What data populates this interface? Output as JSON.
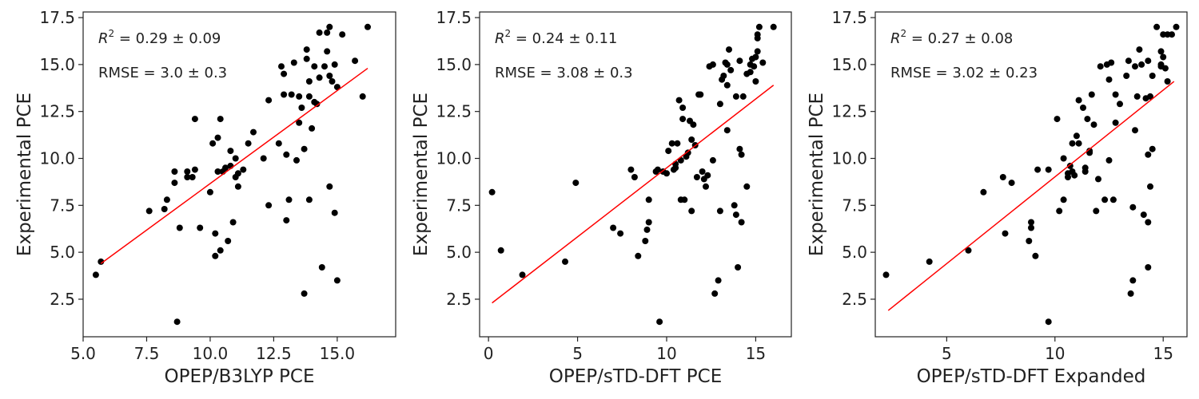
{
  "chart_data": [
    {
      "type": "scatter",
      "xlabel": "OPEP/B3LYP PCE",
      "ylabel": "Experimental PCE",
      "xlim": [
        5.0,
        17.3
      ],
      "ylim": [
        0.5,
        17.8
      ],
      "xticks": [
        5.0,
        7.5,
        10.0,
        12.5,
        15.0
      ],
      "xtick_labels": [
        "5.0",
        "7.5",
        "10.0",
        "12.5",
        "15.0"
      ],
      "yticks": [
        2.5,
        5.0,
        7.5,
        10.0,
        12.5,
        15.0,
        17.5
      ],
      "ytick_labels": [
        "2.5",
        "5.0",
        "7.5",
        "10.0",
        "12.5",
        "15.0",
        "17.5"
      ],
      "grid": false,
      "point_color": "#000000",
      "fit_color": "#ff0000",
      "annotations": {
        "r2_label": "R",
        "r2_sup": "2",
        "r2_value": " = 0.29 ± 0.09",
        "rmse": "RMSE = 3.0 ± 0.3"
      },
      "fit_line": {
        "x": [
          5.7,
          16.2
        ],
        "y": [
          4.4,
          14.8
        ]
      },
      "points": [
        [
          5.5,
          3.8
        ],
        [
          5.7,
          4.5
        ],
        [
          7.6,
          7.2
        ],
        [
          8.2,
          7.3
        ],
        [
          8.3,
          7.8
        ],
        [
          8.6,
          8.7
        ],
        [
          8.7,
          1.3
        ],
        [
          8.6,
          9.3
        ],
        [
          8.8,
          6.3
        ],
        [
          9.1,
          9.0
        ],
        [
          9.1,
          9.3
        ],
        [
          9.3,
          9.0
        ],
        [
          9.4,
          9.4
        ],
        [
          9.4,
          12.1
        ],
        [
          9.6,
          6.3
        ],
        [
          10.0,
          8.2
        ],
        [
          10.1,
          10.8
        ],
        [
          10.2,
          4.8
        ],
        [
          10.2,
          6.0
        ],
        [
          10.3,
          11.1
        ],
        [
          10.3,
          9.3
        ],
        [
          10.4,
          12.1
        ],
        [
          10.4,
          5.1
        ],
        [
          10.5,
          9.3
        ],
        [
          10.6,
          9.5
        ],
        [
          10.7,
          5.6
        ],
        [
          10.8,
          9.6
        ],
        [
          10.8,
          10.4
        ],
        [
          10.9,
          6.6
        ],
        [
          11.0,
          9.0
        ],
        [
          11.0,
          10.0
        ],
        [
          11.1,
          8.5
        ],
        [
          11.1,
          9.2
        ],
        [
          11.3,
          9.4
        ],
        [
          11.5,
          10.8
        ],
        [
          11.7,
          11.4
        ],
        [
          12.1,
          10.0
        ],
        [
          12.3,
          7.5
        ],
        [
          12.3,
          13.1
        ],
        [
          12.7,
          10.8
        ],
        [
          12.8,
          14.9
        ],
        [
          12.9,
          13.4
        ],
        [
          12.9,
          14.5
        ],
        [
          13.0,
          10.2
        ],
        [
          13.0,
          6.7
        ],
        [
          13.1,
          7.8
        ],
        [
          13.2,
          13.4
        ],
        [
          13.3,
          15.1
        ],
        [
          13.4,
          9.9
        ],
        [
          13.5,
          11.9
        ],
        [
          13.5,
          13.3
        ],
        [
          13.6,
          12.7
        ],
        [
          13.7,
          10.5
        ],
        [
          13.7,
          2.8
        ],
        [
          13.8,
          15.8
        ],
        [
          13.8,
          15.3
        ],
        [
          13.9,
          14.1
        ],
        [
          13.9,
          13.3
        ],
        [
          13.9,
          7.8
        ],
        [
          14.0,
          11.6
        ],
        [
          14.1,
          14.9
        ],
        [
          14.1,
          13.0
        ],
        [
          14.2,
          12.9
        ],
        [
          14.3,
          14.3
        ],
        [
          14.3,
          16.7
        ],
        [
          14.4,
          4.2
        ],
        [
          14.5,
          14.9
        ],
        [
          14.6,
          16.7
        ],
        [
          14.6,
          15.7
        ],
        [
          14.7,
          17.0
        ],
        [
          14.7,
          14.4
        ],
        [
          14.7,
          8.5
        ],
        [
          14.8,
          14.1
        ],
        [
          14.9,
          15.0
        ],
        [
          14.9,
          7.1
        ],
        [
          15.0,
          3.5
        ],
        [
          15.0,
          13.8
        ],
        [
          15.2,
          16.6
        ],
        [
          15.7,
          15.2
        ],
        [
          16.0,
          13.3
        ],
        [
          16.2,
          17.0
        ]
      ]
    },
    {
      "type": "scatter",
      "xlabel": "OPEP/sTD-DFT PCE",
      "ylabel": "Experimental PCE",
      "xlim": [
        -0.5,
        17.0
      ],
      "ylim": [
        0.5,
        17.8
      ],
      "xticks": [
        0,
        5,
        10,
        15
      ],
      "xtick_labels": [
        "0",
        "5",
        "10",
        "15"
      ],
      "yticks": [
        2.5,
        5.0,
        7.5,
        10.0,
        12.5,
        15.0,
        17.5
      ],
      "ytick_labels": [
        "2.5",
        "5.0",
        "7.5",
        "10.0",
        "12.5",
        "15.0",
        "17.5"
      ],
      "grid": false,
      "point_color": "#000000",
      "fit_color": "#ff0000",
      "annotations": {
        "r2_label": "R",
        "r2_sup": "2",
        "r2_value": " = 0.24 ± 0.11",
        "rmse": "RMSE = 3.08 ± 0.3"
      },
      "fit_line": {
        "x": [
          0.2,
          16.0
        ],
        "y": [
          2.3,
          13.9
        ]
      },
      "points": [
        [
          0.2,
          8.2
        ],
        [
          0.7,
          5.1
        ],
        [
          1.9,
          3.8
        ],
        [
          4.3,
          4.5
        ],
        [
          4.9,
          8.7
        ],
        [
          7.0,
          6.3
        ],
        [
          7.4,
          6.0
        ],
        [
          8.0,
          9.4
        ],
        [
          8.2,
          9.0
        ],
        [
          8.4,
          4.8
        ],
        [
          8.8,
          5.6
        ],
        [
          8.9,
          6.2
        ],
        [
          9.0,
          6.6
        ],
        [
          9.0,
          7.8
        ],
        [
          9.4,
          9.3
        ],
        [
          9.5,
          9.4
        ],
        [
          9.6,
          1.3
        ],
        [
          9.8,
          9.3
        ],
        [
          10.0,
          9.2
        ],
        [
          10.1,
          10.4
        ],
        [
          10.3,
          10.8
        ],
        [
          10.4,
          9.4
        ],
        [
          10.5,
          9.5
        ],
        [
          10.5,
          9.7
        ],
        [
          10.6,
          10.8
        ],
        [
          10.7,
          13.1
        ],
        [
          10.8,
          9.9
        ],
        [
          10.8,
          7.8
        ],
        [
          10.9,
          12.7
        ],
        [
          10.9,
          12.1
        ],
        [
          11.0,
          7.8
        ],
        [
          11.1,
          10.1
        ],
        [
          11.2,
          10.3
        ],
        [
          11.3,
          12.0
        ],
        [
          11.4,
          11.0
        ],
        [
          11.4,
          7.2
        ],
        [
          11.5,
          11.8
        ],
        [
          11.6,
          10.7
        ],
        [
          11.7,
          9.0
        ],
        [
          11.8,
          13.4
        ],
        [
          11.9,
          13.4
        ],
        [
          12.0,
          9.3
        ],
        [
          12.1,
          8.9
        ],
        [
          12.2,
          8.5
        ],
        [
          12.3,
          9.1
        ],
        [
          12.4,
          14.9
        ],
        [
          12.6,
          15.0
        ],
        [
          12.6,
          9.9
        ],
        [
          12.7,
          2.8
        ],
        [
          12.9,
          3.5
        ],
        [
          13.0,
          7.2
        ],
        [
          13.0,
          12.9
        ],
        [
          13.1,
          14.2
        ],
        [
          13.2,
          14.4
        ],
        [
          13.3,
          15.1
        ],
        [
          13.4,
          13.9
        ],
        [
          13.4,
          15.0
        ],
        [
          13.4,
          11.5
        ],
        [
          13.5,
          15.8
        ],
        [
          13.6,
          14.7
        ],
        [
          13.8,
          7.5
        ],
        [
          13.9,
          7.0
        ],
        [
          13.9,
          13.3
        ],
        [
          14.0,
          4.2
        ],
        [
          14.1,
          15.2
        ],
        [
          14.1,
          10.5
        ],
        [
          14.2,
          10.2
        ],
        [
          14.2,
          6.6
        ],
        [
          14.3,
          13.3
        ],
        [
          14.5,
          8.5
        ],
        [
          14.5,
          14.5
        ],
        [
          14.7,
          14.6
        ],
        [
          14.7,
          15.0
        ],
        [
          14.8,
          15.3
        ],
        [
          14.9,
          14.9
        ],
        [
          15.0,
          15.4
        ],
        [
          15.0,
          14.1
        ],
        [
          15.1,
          15.7
        ],
        [
          15.1,
          16.6
        ],
        [
          15.1,
          16.4
        ],
        [
          15.2,
          17.0
        ],
        [
          15.4,
          15.1
        ],
        [
          16.0,
          17.0
        ]
      ]
    },
    {
      "type": "scatter",
      "xlabel": "OPEP/sTD-DFT Expanded",
      "ylabel": "Experimental PCE",
      "xlim": [
        1.7,
        16.1
      ],
      "ylim": [
        0.5,
        17.8
      ],
      "xticks": [
        5,
        10,
        15
      ],
      "xtick_labels": [
        "5",
        "10",
        "15"
      ],
      "yticks": [
        2.5,
        5.0,
        7.5,
        10.0,
        12.5,
        15.0,
        17.5
      ],
      "ytick_labels": [
        "2.5",
        "5.0",
        "7.5",
        "10.0",
        "12.5",
        "15.0",
        "17.5"
      ],
      "grid": false,
      "point_color": "#000000",
      "fit_color": "#ff0000",
      "annotations": {
        "r2_label": "R",
        "r2_sup": "2",
        "r2_value": " = 0.27 ± 0.08",
        "rmse": "RMSE = 3.02 ± 0.23"
      },
      "fit_line": {
        "x": [
          2.3,
          15.5
        ],
        "y": [
          1.9,
          14.1
        ]
      },
      "points": [
        [
          2.2,
          3.8
        ],
        [
          4.2,
          4.5
        ],
        [
          6.0,
          5.1
        ],
        [
          6.7,
          8.2
        ],
        [
          7.6,
          9.0
        ],
        [
          7.7,
          6.0
        ],
        [
          8.0,
          8.7
        ],
        [
          8.8,
          5.6
        ],
        [
          8.9,
          6.3
        ],
        [
          8.9,
          6.6
        ],
        [
          9.1,
          4.8
        ],
        [
          9.2,
          9.4
        ],
        [
          9.7,
          9.4
        ],
        [
          9.7,
          1.3
        ],
        [
          10.1,
          12.1
        ],
        [
          10.2,
          7.2
        ],
        [
          10.4,
          7.8
        ],
        [
          10.4,
          10.0
        ],
        [
          10.6,
          9.2
        ],
        [
          10.6,
          9.0
        ],
        [
          10.7,
          9.6
        ],
        [
          10.8,
          10.8
        ],
        [
          10.8,
          9.3
        ],
        [
          10.9,
          9.1
        ],
        [
          11.0,
          11.2
        ],
        [
          11.1,
          13.1
        ],
        [
          11.1,
          10.8
        ],
        [
          11.3,
          12.7
        ],
        [
          11.4,
          9.3
        ],
        [
          11.4,
          9.5
        ],
        [
          11.5,
          12.1
        ],
        [
          11.6,
          10.4
        ],
        [
          11.6,
          10.3
        ],
        [
          11.7,
          13.4
        ],
        [
          11.8,
          11.8
        ],
        [
          11.9,
          7.2
        ],
        [
          12.0,
          8.9
        ],
        [
          12.1,
          14.9
        ],
        [
          12.3,
          7.8
        ],
        [
          12.4,
          15.0
        ],
        [
          12.5,
          14.2
        ],
        [
          12.5,
          9.9
        ],
        [
          12.6,
          15.1
        ],
        [
          12.7,
          7.8
        ],
        [
          12.8,
          13.4
        ],
        [
          12.8,
          11.9
        ],
        [
          13.0,
          12.9
        ],
        [
          13.3,
          14.4
        ],
        [
          13.4,
          15.2
        ],
        [
          13.5,
          2.8
        ],
        [
          13.6,
          3.5
        ],
        [
          13.6,
          7.4
        ],
        [
          13.7,
          11.5
        ],
        [
          13.7,
          14.9
        ],
        [
          13.8,
          13.3
        ],
        [
          13.9,
          15.8
        ],
        [
          14.0,
          15.0
        ],
        [
          14.1,
          7.0
        ],
        [
          14.2,
          13.2
        ],
        [
          14.3,
          15.2
        ],
        [
          14.3,
          4.2
        ],
        [
          14.3,
          6.6
        ],
        [
          14.3,
          10.2
        ],
        [
          14.4,
          8.5
        ],
        [
          14.4,
          13.3
        ],
        [
          14.5,
          10.5
        ],
        [
          14.5,
          14.4
        ],
        [
          14.7,
          17.0
        ],
        [
          14.9,
          14.9
        ],
        [
          14.9,
          15.0
        ],
        [
          14.9,
          15.7
        ],
        [
          15.0,
          15.4
        ],
        [
          15.0,
          16.6
        ],
        [
          15.1,
          14.8
        ],
        [
          15.2,
          16.6
        ],
        [
          15.2,
          14.1
        ],
        [
          15.4,
          16.6
        ],
        [
          15.6,
          17.0
        ]
      ]
    }
  ]
}
